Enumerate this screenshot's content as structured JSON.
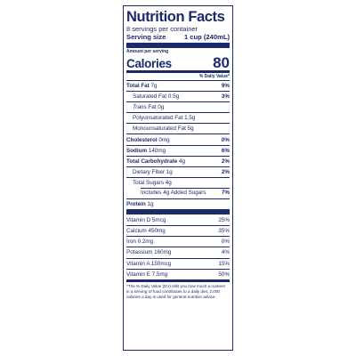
{
  "label": {
    "title": "Nutrition Facts",
    "servings_per_container": "8 servings per container",
    "serving_size_label": "Serving size",
    "serving_size_value": "1 cup (240mL)",
    "amount_per_serving": "Amount per serving",
    "calories_label": "Calories",
    "calories_value": "80",
    "daily_value_header": "% Daily Value*",
    "nutrients": {
      "total_fat": {
        "name": "Total Fat",
        "amount": "7g",
        "dv": "9%"
      },
      "saturated_fat": {
        "name": "Saturated Fat 0.5g",
        "dv": "3%"
      },
      "trans_fat": {
        "name_italic": "Trans",
        "name_rest": " Fat 0g"
      },
      "polyunsaturated_fat": {
        "name": "Polyunsaturated Fat 1.5g"
      },
      "monounsaturated_fat": {
        "name": "Monounsaturated Fat 5g"
      },
      "cholesterol": {
        "name": "Cholesterol",
        "amount": "0mg",
        "dv": "0%"
      },
      "sodium": {
        "name": "Sodium",
        "amount": "140mg",
        "dv": "6%"
      },
      "total_carbohydrate": {
        "name": "Total Carbohydrate",
        "amount": "4g",
        "dv": "2%"
      },
      "dietary_fiber": {
        "name": "Dietary Fiber 1g",
        "dv": "2%"
      },
      "total_sugars": {
        "name": "Total Sugars 4g"
      },
      "added_sugars": {
        "name": "Includes 4g Added Sugars",
        "dv": "7%"
      },
      "protein": {
        "name": "Protein",
        "amount": "1g"
      }
    },
    "vitamins": [
      {
        "name": "Vitamin D 5mcg",
        "dv": "25%"
      },
      {
        "name": "Calcium 450mg",
        "dv": "35%"
      },
      {
        "name": "Iron 0.2mg",
        "dv": "0%"
      },
      {
        "name": "Potassium 160mg",
        "dv": "4%"
      },
      {
        "name": "Vitamin A 150mcg",
        "dv": "15%"
      },
      {
        "name": "Vitamin E 7.5mg",
        "dv": "50%"
      }
    ],
    "footnote_lines": [
      "*The % Daily Value (DV) tells you how much a nutrient",
      "in a serving of food contributes to a daily diet. 2,000",
      "calories a day is used for general nutrition advice."
    ],
    "colors": {
      "ink": "#1b2a6b",
      "background": "#ffffff"
    }
  }
}
